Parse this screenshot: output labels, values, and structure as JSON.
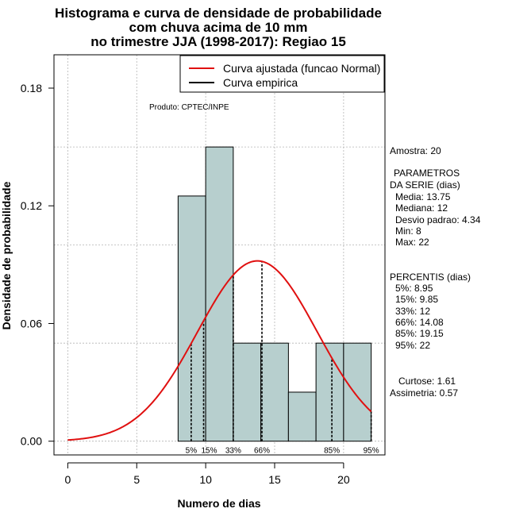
{
  "title_lines": [
    "Histograma e curva de densidade de probabilidade",
    "com chuva acima de 10 mm",
    "no trimestre JJA (1998-2017): Regiao 15"
  ],
  "colors": {
    "bars": "#b7cfce",
    "fitted_curve": "#e01010",
    "empirical": "#000000",
    "grid": "#b4b4b4"
  },
  "chart_data": {
    "type": "bar",
    "title": "Histograma e curva de densidade de probabilidade com chuva acima de 10 mm no trimestre JJA (1998-2017): Regiao 15",
    "xlabel": "Numero de dias",
    "ylabel": "Densidade de probabilidade",
    "xlim": [
      -1,
      23
    ],
    "ylim": [
      -0.007,
      0.197
    ],
    "x_ticks": [
      0,
      5,
      10,
      15,
      20
    ],
    "y_ticks": [
      0.0,
      0.06,
      0.12,
      0.18
    ],
    "y_tick_labels": [
      "0.00",
      "0.06",
      "0.12",
      "0.18"
    ],
    "grid": true,
    "bins": [
      {
        "x0": 8,
        "x1": 10,
        "density": 0.125
      },
      {
        "x0": 10,
        "x1": 12,
        "density": 0.15
      },
      {
        "x0": 12,
        "x1": 14,
        "density": 0.05
      },
      {
        "x0": 14,
        "x1": 16,
        "density": 0.05
      },
      {
        "x0": 16,
        "x1": 18,
        "density": 0.025
      },
      {
        "x0": 18,
        "x1": 20,
        "density": 0.05
      },
      {
        "x0": 20,
        "x1": 22,
        "density": 0.05
      }
    ],
    "fitted_normal": {
      "mean": 13.75,
      "sd": 4.34,
      "x_range": [
        0,
        22
      ]
    },
    "percentile_markers": [
      {
        "label": "5%",
        "x": 8.95
      },
      {
        "label": "15%",
        "x": 9.85
      },
      {
        "label": "33%",
        "x": 12
      },
      {
        "label": "66%",
        "x": 14.08
      },
      {
        "label": "85%",
        "x": 19.15
      },
      {
        "label": "95%",
        "x": 22
      }
    ],
    "legend": {
      "position": "top-right",
      "entries": [
        "Curva ajustada (funcao Normal)",
        "Curva empirica"
      ]
    },
    "annotation": "Produto: CPTEC/INPE"
  },
  "side_panel": {
    "amostra": "Amostra: 20",
    "param_lines": [
      "PARAMETROS",
      "DA SERIE (dias)",
      "Media: 13.75",
      "Mediana: 12",
      "Desvio padrao: 4.34",
      "Min: 8",
      "Max: 22"
    ],
    "percentis_lines": [
      "PERCENTIS (dias)",
      "5%: 8.95",
      "15%: 9.85",
      "33%: 12",
      "66%: 14.08",
      "85%: 19.15",
      "95%: 22"
    ],
    "shape_lines": [
      "Curtose: 1.61",
      "Assimetria: 0.57"
    ]
  }
}
